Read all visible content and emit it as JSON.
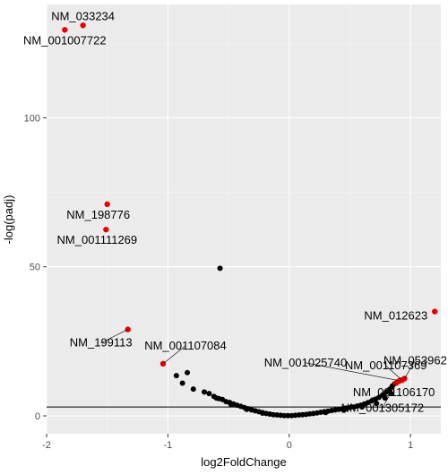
{
  "chart_data": {
    "type": "scatter",
    "title": "",
    "xlabel": "log2FoldChange",
    "ylabel": "-log(padj)",
    "xlim": [
      -2,
      1.25
    ],
    "ylim": [
      -6,
      138
    ],
    "xticks": [
      -2,
      -1,
      0,
      1
    ],
    "yticks": [
      0,
      50,
      100
    ],
    "grid": true,
    "threshold_y": 3,
    "colors": {
      "panel": "#ebebeb",
      "grid_major": "#ffffff",
      "grid_minor": "#f4f4f4",
      "point": "#000000",
      "highlight": "#e60000",
      "hline": "#000000"
    },
    "highlighted": [
      {
        "label": "NM_033234",
        "x": -1.7,
        "y": 131.0
      },
      {
        "label": "NM_001007722",
        "x": -1.85,
        "y": 129.5
      },
      {
        "label": "NM_198776",
        "x": -1.5,
        "y": 71.0
      },
      {
        "label": "NM_001111269",
        "x": -1.51,
        "y": 62.5
      },
      {
        "label": "NM_199113",
        "x": -1.33,
        "y": 29.0
      },
      {
        "label": "NM_001107084",
        "x": -1.04,
        "y": 17.5
      },
      {
        "label": "NM_012623",
        "x": 1.2,
        "y": 35.0
      },
      {
        "label": "NM_053962",
        "x": 0.95,
        "y": 12.5
      },
      {
        "label": "NM_001107369",
        "x": 0.93,
        "y": 12.0
      },
      {
        "label": "NM_001025740",
        "x": 0.91,
        "y": 11.8
      },
      {
        "label": "NM_001106170",
        "x": 0.9,
        "y": 11.5
      },
      {
        "label": "NM_001305172",
        "x": 0.88,
        "y": 11.0
      }
    ],
    "other_points": [
      [
        -0.57,
        49.5
      ],
      [
        -0.93,
        13.5
      ],
      [
        -0.84,
        14.5
      ],
      [
        -0.88,
        11.0
      ],
      [
        -0.79,
        9.0
      ],
      [
        -0.7,
        8.0
      ],
      [
        -0.66,
        7.5
      ],
      [
        -0.62,
        6.5
      ],
      [
        -0.58,
        5.8
      ],
      [
        -0.55,
        5.5
      ],
      [
        -0.52,
        4.8
      ],
      [
        -0.49,
        4.5
      ],
      [
        -0.46,
        4.0
      ],
      [
        -0.43,
        3.6
      ],
      [
        -0.4,
        3.2
      ],
      [
        -0.37,
        2.8
      ],
      [
        -0.34,
        2.4
      ],
      [
        -0.31,
        2.0
      ],
      [
        -0.28,
        1.7
      ],
      [
        -0.25,
        1.4
      ],
      [
        -0.22,
        1.1
      ],
      [
        -0.19,
        0.8
      ],
      [
        -0.16,
        0.6
      ],
      [
        -0.13,
        0.4
      ],
      [
        -0.1,
        0.3
      ],
      [
        -0.07,
        0.2
      ],
      [
        -0.04,
        0.1
      ],
      [
        -0.01,
        0.1
      ],
      [
        0.02,
        0.1
      ],
      [
        0.05,
        0.2
      ],
      [
        0.08,
        0.3
      ],
      [
        0.11,
        0.4
      ],
      [
        0.14,
        0.5
      ],
      [
        0.17,
        0.7
      ],
      [
        0.2,
        0.8
      ],
      [
        0.23,
        1.0
      ],
      [
        0.26,
        1.2
      ],
      [
        0.29,
        1.4
      ],
      [
        0.32,
        1.6
      ],
      [
        0.35,
        1.8
      ],
      [
        0.38,
        2.0
      ],
      [
        0.41,
        2.2
      ],
      [
        0.44,
        2.4
      ],
      [
        0.47,
        2.6
      ],
      [
        0.5,
        2.8
      ],
      [
        0.53,
        3.0
      ],
      [
        0.56,
        3.3
      ],
      [
        0.59,
        3.6
      ],
      [
        0.62,
        4.0
      ],
      [
        0.65,
        4.5
      ],
      [
        0.68,
        5.0
      ],
      [
        0.71,
        5.6
      ],
      [
        0.74,
        6.2
      ],
      [
        0.77,
        7.0
      ],
      [
        0.8,
        8.0
      ],
      [
        0.83,
        9.0
      ],
      [
        0.85,
        10.0
      ],
      [
        0.87,
        10.8
      ],
      [
        -0.6,
        6.0
      ],
      [
        -0.48,
        3.8
      ],
      [
        -0.35,
        2.2
      ],
      [
        -0.22,
        0.9
      ],
      [
        0.3,
        1.1
      ],
      [
        0.45,
        1.9
      ],
      [
        0.6,
        3.0
      ],
      [
        0.72,
        4.2
      ],
      [
        0.79,
        6.0
      ],
      [
        0.84,
        7.5
      ]
    ]
  }
}
